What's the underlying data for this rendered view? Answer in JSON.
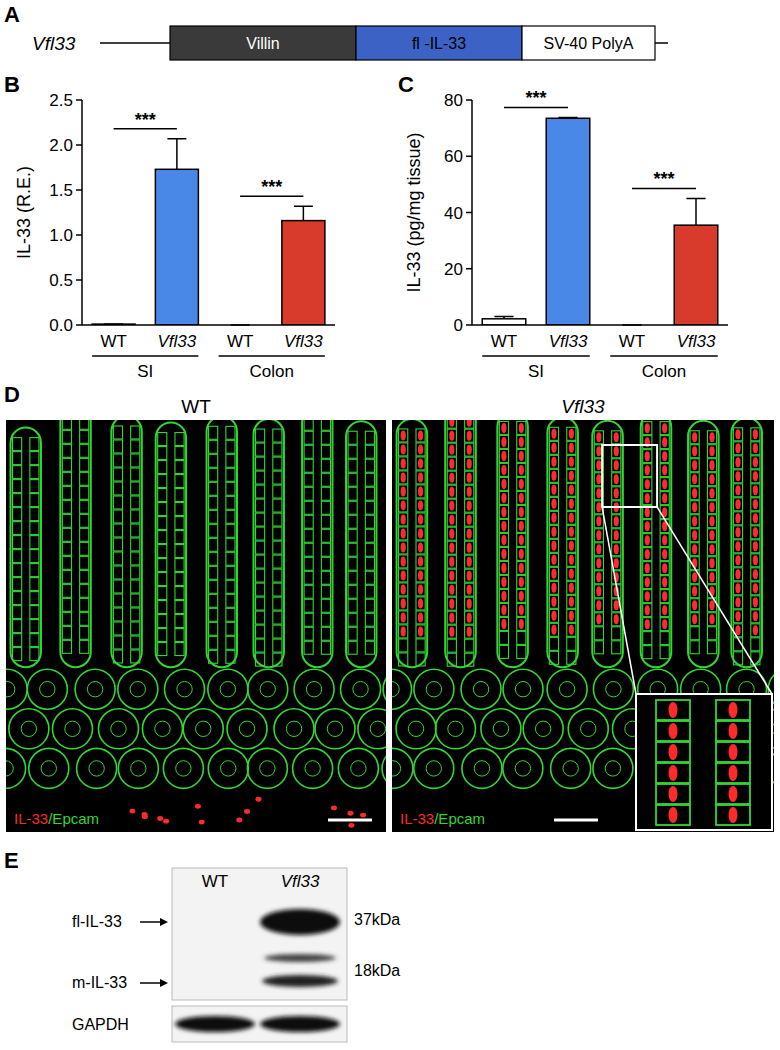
{
  "chart_data": [
    {
      "type": "bar",
      "title": "B",
      "ylabel": "IL-33 (R.E.)",
      "categories": [
        "WT",
        "Vfl33",
        "WT",
        "Vfl33"
      ],
      "group_labels": [
        "SI",
        "Colon"
      ],
      "values": [
        0.01,
        1.73,
        0.0,
        1.16
      ],
      "errors": [
        0.0,
        0.34,
        0.0,
        0.16
      ],
      "colors": [
        "#ffffff",
        "#4a88e8",
        "#ffffff",
        "#d83a2b"
      ],
      "ylim": [
        0,
        2.5
      ],
      "yticks": [
        {
          "value": 0,
          "label": "0.0"
        },
        {
          "value": 0.5,
          "label": "0.5"
        },
        {
          "value": 1,
          "label": "1.0"
        },
        {
          "value": 1.5,
          "label": "1.5"
        },
        {
          "value": 2,
          "label": "2.0"
        },
        {
          "value": 2.5,
          "label": "2.5"
        }
      ],
      "annotations": [
        "***",
        "***"
      ],
      "grid": false
    },
    {
      "type": "bar",
      "title": "C",
      "ylabel": "IL-33 (pg/mg tissue)",
      "categories": [
        "WT",
        "Vfl33",
        "WT",
        "Vfl33"
      ],
      "group_labels": [
        "SI",
        "Colon"
      ],
      "values": [
        2.2,
        73.5,
        0.0,
        35.5
      ],
      "errors": [
        0.8,
        0.3,
        0.0,
        9.5
      ],
      "colors": [
        "#ffffff",
        "#4a88e8",
        "#ffffff",
        "#d83a2b"
      ],
      "ylim": [
        0,
        80
      ],
      "yticks": [
        0,
        20,
        40,
        60,
        80
      ],
      "annotations": [
        "***",
        "***"
      ],
      "grid": false
    }
  ],
  "panel_a": {
    "title": "A",
    "construct": "Vfl33",
    "segments": [
      {
        "label": "Villin",
        "color": "#3a3a3a"
      },
      {
        "label": "fl -IL-33",
        "color": "#3d62c6"
      },
      {
        "label": "SV-40 PolyA",
        "color": "#ffffff"
      }
    ]
  },
  "panel_d": {
    "title": "D",
    "images": [
      "WT",
      "Vfl33"
    ],
    "stains": [
      {
        "text": "IL-33",
        "color": "#ff2a2a"
      },
      {
        "text": "/Epcam",
        "color": "#33d633"
      }
    ]
  },
  "panel_e": {
    "title": "E",
    "lanes": [
      "WT",
      "Vfl33"
    ],
    "bands": [
      {
        "label": "fl-IL-33",
        "size": "37kDa"
      },
      {
        "label": "m-IL-33",
        "size": "18kDa"
      }
    ],
    "loading_control": "GAPDH"
  }
}
